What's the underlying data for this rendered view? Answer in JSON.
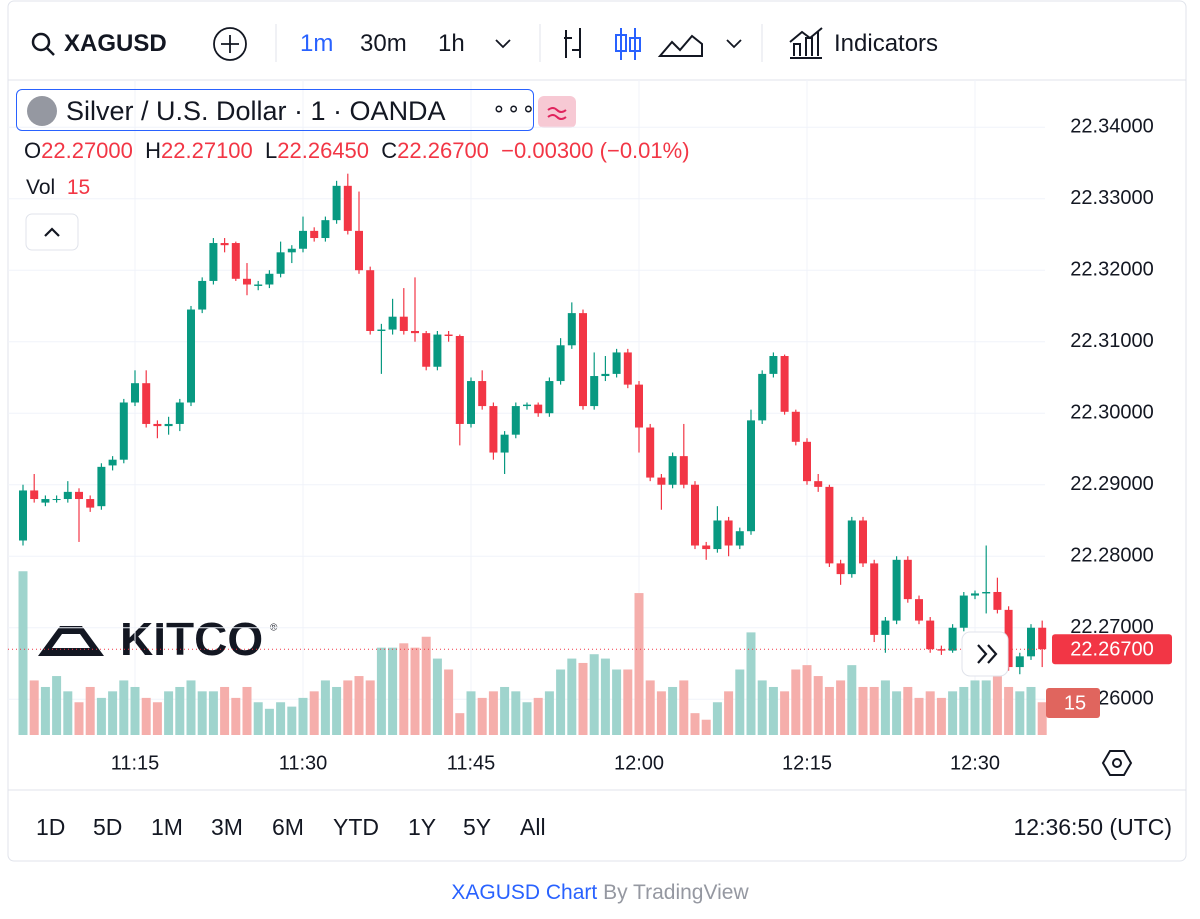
{
  "toolbar": {
    "symbol": "XAGUSD",
    "intervals": [
      "1m",
      "30m",
      "1h"
    ],
    "indicators": "Indicators"
  },
  "legend": {
    "title": "Silver / U.S. Dollar · 1 · OANDA",
    "o": "O",
    "o_value": "22.27000",
    "h": "H",
    "h_value": "22.27100",
    "l": "L",
    "l_value": "22.26450",
    "c": "C",
    "c_value": "22.26700",
    "change": "−0.00300 (−0.01%)",
    "vol": "Vol",
    "vol_value": "15"
  },
  "watermark": "KITCO",
  "ranges": [
    "1D",
    "5D",
    "1M",
    "3M",
    "6M",
    "YTD",
    "1Y",
    "5Y",
    "All"
  ],
  "clock": "12:36:50 (UTC)",
  "footer": {
    "link": "XAGUSD Chart",
    "by": "By TradingView"
  },
  "chart_data": {
    "type": "candlestick",
    "categories": [
      null,
      null,
      null,
      null,
      null,
      null,
      null,
      null,
      null,
      null,
      "11:15",
      null,
      null,
      null,
      null,
      null,
      null,
      null,
      null,
      null,
      null,
      null,
      null,
      null,
      null,
      "11:30",
      null,
      null,
      null,
      null,
      null,
      null,
      null,
      null,
      null,
      null,
      null,
      null,
      null,
      null,
      "11:45",
      null,
      null,
      null,
      null,
      null,
      null,
      null,
      null,
      null,
      null,
      null,
      null,
      null,
      null,
      "12:00",
      null,
      null,
      null,
      null,
      null,
      null,
      null,
      null,
      null,
      null,
      null,
      null,
      null,
      null,
      "12:15",
      null,
      null,
      null,
      null,
      null,
      null,
      null,
      null,
      null,
      null,
      null,
      null,
      null,
      null,
      "12:30",
      null,
      null,
      null,
      null,
      null,
      null
    ],
    "open": [
      22.2822,
      22.2892,
      22.2875,
      22.288,
      22.288,
      22.289,
      22.288,
      22.287,
      22.2927,
      22.2935,
      22.3015,
      22.3042,
      22.2985,
      22.2982,
      22.2985,
      22.3015,
      22.3145,
      22.3185,
      22.3238,
      22.3238,
      22.3188,
      22.3178,
      22.318,
      22.3195,
      22.3225,
      22.323,
      22.3255,
      22.3245,
      22.327,
      22.3318,
      22.3255,
      22.32,
      22.3115,
      22.3117,
      22.3135,
      22.3115,
      22.3112,
      22.3065,
      22.311,
      22.3108,
      22.2985,
      22.3045,
      22.301,
      22.2945,
      22.297,
      22.301,
      22.3012,
      22.3,
      22.3045,
      22.3095,
      22.314,
      22.301,
      22.3052,
      22.3055,
      22.3085,
      22.304,
      22.298,
      22.291,
      22.29,
      22.294,
      22.29,
      22.2815,
      22.281,
      22.285,
      22.2815,
      22.2835,
      22.299,
      22.3055,
      22.308,
      22.3002,
      22.296,
      22.2905,
      22.2897,
      22.279,
      22.2775,
      22.285,
      22.279,
      22.269,
      22.271,
      22.2795,
      22.274,
      22.271,
      22.267,
      22.2668,
      22.27,
      22.2745,
      22.2748,
      22.275,
      22.2725,
      22.2645,
      22.266,
      22.27
    ],
    "high": [
      22.29,
      22.2915,
      22.2885,
      22.2885,
      22.2905,
      22.2895,
      22.2885,
      22.293,
      22.294,
      22.302,
      22.306,
      22.306,
      22.299,
      22.2995,
      22.302,
      22.315,
      22.319,
      22.3245,
      22.3245,
      22.324,
      22.321,
      22.3185,
      22.32,
      22.324,
      22.3235,
      22.3275,
      22.326,
      22.3275,
      22.3325,
      22.3335,
      22.331,
      22.3205,
      22.3125,
      22.316,
      22.3175,
      22.319,
      22.3115,
      22.3115,
      22.3115,
      22.311,
      22.305,
      22.306,
      22.3015,
      22.2975,
      22.3015,
      22.3015,
      22.3015,
      22.305,
      22.3105,
      22.3155,
      22.3145,
      22.3085,
      22.308,
      22.309,
      22.309,
      22.3045,
      22.2985,
      22.2915,
      22.2945,
      22.2985,
      22.2905,
      22.282,
      22.287,
      22.2855,
      22.284,
      22.3005,
      22.306,
      22.3085,
      22.3082,
      22.3005,
      22.2965,
      22.2915,
      22.29,
      22.2795,
      22.2855,
      22.2855,
      22.2795,
      22.2715,
      22.28,
      22.28,
      22.2745,
      22.2715,
      22.2675,
      22.2705,
      22.275,
      22.2752,
      22.2815,
      22.277,
      22.273,
      22.2665,
      22.2705,
      22.271
    ],
    "low": [
      22.2815,
      22.2875,
      22.287,
      22.2875,
      22.2875,
      22.282,
      22.2862,
      22.2865,
      22.292,
      22.293,
      22.301,
      22.298,
      22.2965,
      22.297,
      22.2975,
      22.301,
      22.314,
      22.318,
      22.3225,
      22.3185,
      22.3165,
      22.3172,
      22.3175,
      22.319,
      22.321,
      22.3225,
      22.324,
      22.324,
      22.3265,
      22.325,
      22.3195,
      22.311,
      22.3055,
      22.311,
      22.311,
      22.31,
      22.306,
      22.306,
      22.31,
      22.2955,
      22.298,
      22.3005,
      22.2935,
      22.2915,
      22.2965,
      22.3005,
      22.2995,
      22.2995,
      22.304,
      22.309,
      22.3005,
      22.3005,
      22.3045,
      22.305,
      22.3035,
      22.2945,
      22.2905,
      22.2865,
      22.2895,
      22.2895,
      22.281,
      22.2795,
      22.2805,
      22.28,
      22.281,
      22.283,
      22.2985,
      22.305,
      22.2998,
      22.2955,
      22.29,
      22.289,
      22.2785,
      22.276,
      22.277,
      22.2785,
      22.268,
      22.2665,
      22.2705,
      22.2735,
      22.2705,
      22.2665,
      22.2662,
      22.2665,
      22.2695,
      22.274,
      22.272,
      22.272,
      22.264,
      22.2635,
      22.2655,
      22.2645
    ],
    "close": [
      22.2892,
      22.288,
      22.288,
      22.288,
      22.289,
      22.288,
      22.2868,
      22.2925,
      22.2935,
      22.3015,
      22.3042,
      22.2985,
      22.2982,
      22.2985,
      22.3015,
      22.3145,
      22.3185,
      22.3238,
      22.3235,
      22.3188,
      22.318,
      22.318,
      22.3195,
      22.3225,
      22.323,
      22.3255,
      22.3245,
      22.327,
      22.3318,
      22.3255,
      22.32,
      22.3115,
      22.3117,
      22.3135,
      22.3115,
      22.3112,
      22.3065,
      22.311,
      22.3108,
      22.2985,
      22.3045,
      22.301,
      22.2945,
      22.297,
      22.301,
      22.3012,
      22.3,
      22.3045,
      22.3095,
      22.314,
      22.301,
      22.3052,
      22.3055,
      22.3085,
      22.304,
      22.298,
      22.291,
      22.29,
      22.294,
      22.29,
      22.2815,
      22.281,
      22.285,
      22.2815,
      22.2835,
      22.299,
      22.3055,
      22.308,
      22.3002,
      22.296,
      22.2905,
      22.2897,
      22.279,
      22.2775,
      22.285,
      22.279,
      22.269,
      22.271,
      22.2795,
      22.274,
      22.271,
      22.267,
      22.2668,
      22.27,
      22.2745,
      22.2748,
      22.275,
      22.2725,
      22.2645,
      22.266,
      22.27,
      22.267
    ],
    "volume": [
      75,
      25,
      22,
      27,
      20,
      15,
      22,
      17,
      20,
      25,
      22,
      17,
      15,
      20,
      22,
      25,
      20,
      20,
      22,
      17,
      22,
      15,
      12,
      15,
      13,
      17,
      20,
      25,
      22,
      25,
      27,
      25,
      40,
      40,
      42,
      40,
      45,
      35,
      30,
      10,
      20,
      17,
      20,
      22,
      20,
      15,
      17,
      20,
      30,
      35,
      33,
      37,
      35,
      30,
      30,
      65,
      25,
      20,
      22,
      25,
      10,
      7,
      15,
      20,
      30,
      47,
      25,
      22,
      20,
      30,
      32,
      27,
      22,
      25,
      32,
      22,
      22,
      25,
      20,
      22,
      17,
      20,
      17,
      20,
      22,
      25,
      25,
      27,
      22,
      20,
      22,
      15
    ],
    "last_label": "22.26700",
    "up_color": "#089981",
    "down_color": "#f23645",
    "up_volume_color": "#9fd4cd",
    "down_volume_color": "#f5aeab",
    "ylim": [
      22.255,
      22.3466
    ],
    "volume_ylim": [
      0,
      300
    ],
    "yticks": [
      {
        "value": 22.26,
        "label": "22.26000"
      },
      {
        "value": 22.27,
        "label": "22.27000"
      },
      {
        "value": 22.28,
        "label": "22.28000"
      },
      {
        "value": 22.29,
        "label": "22.29000"
      },
      {
        "value": 22.3,
        "label": "22.30000"
      },
      {
        "value": 22.31,
        "label": "22.31000"
      },
      {
        "value": 22.32,
        "label": "22.32000"
      },
      {
        "value": 22.33,
        "label": "22.33000"
      },
      {
        "value": 22.34,
        "label": "22.34000"
      }
    ],
    "grid": true
  }
}
